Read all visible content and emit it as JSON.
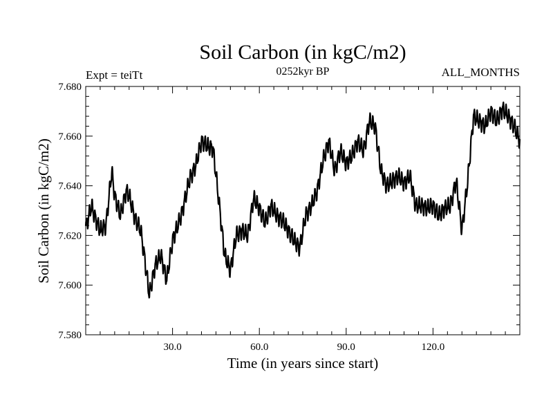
{
  "chart_data": {
    "type": "line",
    "title": "Soil Carbon (in kgC/m2)",
    "subtitle": "0252kyr BP",
    "left_label": "Expt = teiTt",
    "right_label": "ALL_MONTHS",
    "xlabel": "Time (in years since start)",
    "ylabel": "Soil Carbon (in kgC/m2)",
    "xlim": [
      0,
      150
    ],
    "ylim": [
      7.58,
      7.68
    ],
    "x_ticks": [
      30,
      60,
      90,
      120
    ],
    "x_tick_labels": [
      "30.0",
      "60.0",
      "90.0",
      "120.0"
    ],
    "y_ticks": [
      7.58,
      7.6,
      7.62,
      7.64,
      7.66,
      7.68
    ],
    "y_tick_labels": [
      "7.580",
      "7.600",
      "7.620",
      "7.640",
      "7.660",
      "7.680"
    ],
    "line_color": "#000000",
    "seasonal_amplitude": 0.0028,
    "series": [
      {
        "name": "Soil Carbon",
        "x": [
          0,
          2,
          3,
          5,
          7,
          9,
          10,
          12,
          14,
          15,
          17,
          19,
          20,
          22,
          24,
          26,
          28,
          30,
          33,
          36,
          38,
          40,
          42,
          44,
          46,
          48,
          50,
          52,
          54,
          56,
          58,
          60,
          62,
          64,
          66,
          68,
          70,
          72,
          74,
          76,
          78,
          80,
          82,
          84,
          86,
          88,
          90,
          92,
          94,
          96,
          98,
          100,
          102,
          104,
          106,
          108,
          110,
          112,
          114,
          116,
          118,
          120,
          122,
          124,
          126,
          128,
          130,
          132,
          134,
          136,
          138,
          140,
          142,
          144,
          146,
          148,
          150
        ],
        "y": [
          7.623,
          7.632,
          7.628,
          7.622,
          7.624,
          7.646,
          7.636,
          7.628,
          7.638,
          7.636,
          7.627,
          7.622,
          7.614,
          7.596,
          7.608,
          7.612,
          7.602,
          7.618,
          7.628,
          7.643,
          7.648,
          7.658,
          7.656,
          7.655,
          7.634,
          7.612,
          7.606,
          7.62,
          7.622,
          7.62,
          7.635,
          7.631,
          7.625,
          7.632,
          7.628,
          7.626,
          7.622,
          7.618,
          7.615,
          7.628,
          7.632,
          7.638,
          7.65,
          7.658,
          7.646,
          7.654,
          7.649,
          7.652,
          7.658,
          7.654,
          7.666,
          7.664,
          7.646,
          7.64,
          7.642,
          7.644,
          7.641,
          7.644,
          7.632,
          7.632,
          7.631,
          7.632,
          7.628,
          7.631,
          7.632,
          7.642,
          7.622,
          7.642,
          7.668,
          7.666,
          7.664,
          7.67,
          7.666,
          7.671,
          7.668,
          7.664,
          7.658
        ]
      }
    ]
  }
}
